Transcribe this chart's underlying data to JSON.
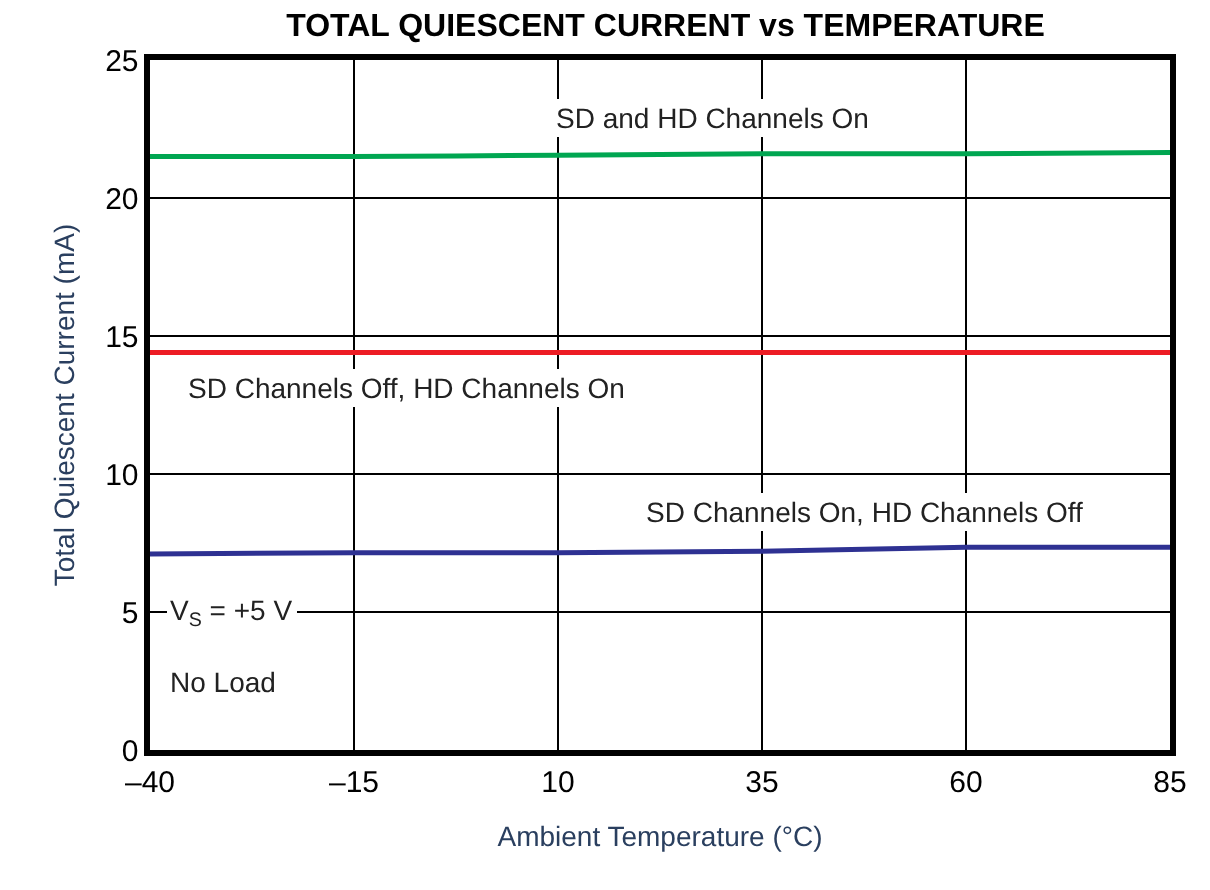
{
  "chart_data": {
    "type": "line",
    "title": "TOTAL QUIESCENT CURRENT vs TEMPERATURE",
    "xlabel": "Ambient Temperature (°C)",
    "ylabel": "Total Quiescent Current (mA)",
    "x": [
      -40,
      -15,
      10,
      35,
      60,
      85
    ],
    "series": [
      {
        "name": "SD and HD Channels On",
        "color": "#00a651",
        "values": [
          21.5,
          21.5,
          21.55,
          21.6,
          21.6,
          21.65
        ]
      },
      {
        "name": "SD Channels Off, HD Channels On",
        "color": "#ed1c24",
        "values": [
          14.4,
          14.4,
          14.4,
          14.4,
          14.4,
          14.4
        ]
      },
      {
        "name": "SD Channels On, HD Channels Off",
        "color": "#2e3192",
        "values": [
          7.1,
          7.15,
          7.15,
          7.2,
          7.35,
          7.35
        ]
      }
    ],
    "annotations": [
      "V$_{S}$ = +5 V",
      "No Load"
    ],
    "xlim": [
      -40,
      85
    ],
    "xticks": [
      {
        "value": -40,
        "label": "–40"
      },
      {
        "value": -15,
        "label": "–15"
      },
      10,
      35,
      60,
      85
    ],
    "ylim": [
      0,
      25
    ],
    "yticks": [
      0,
      5,
      10,
      15,
      20,
      25
    ],
    "grid": true,
    "legend": false,
    "marker": "none",
    "line_style": "solid"
  }
}
